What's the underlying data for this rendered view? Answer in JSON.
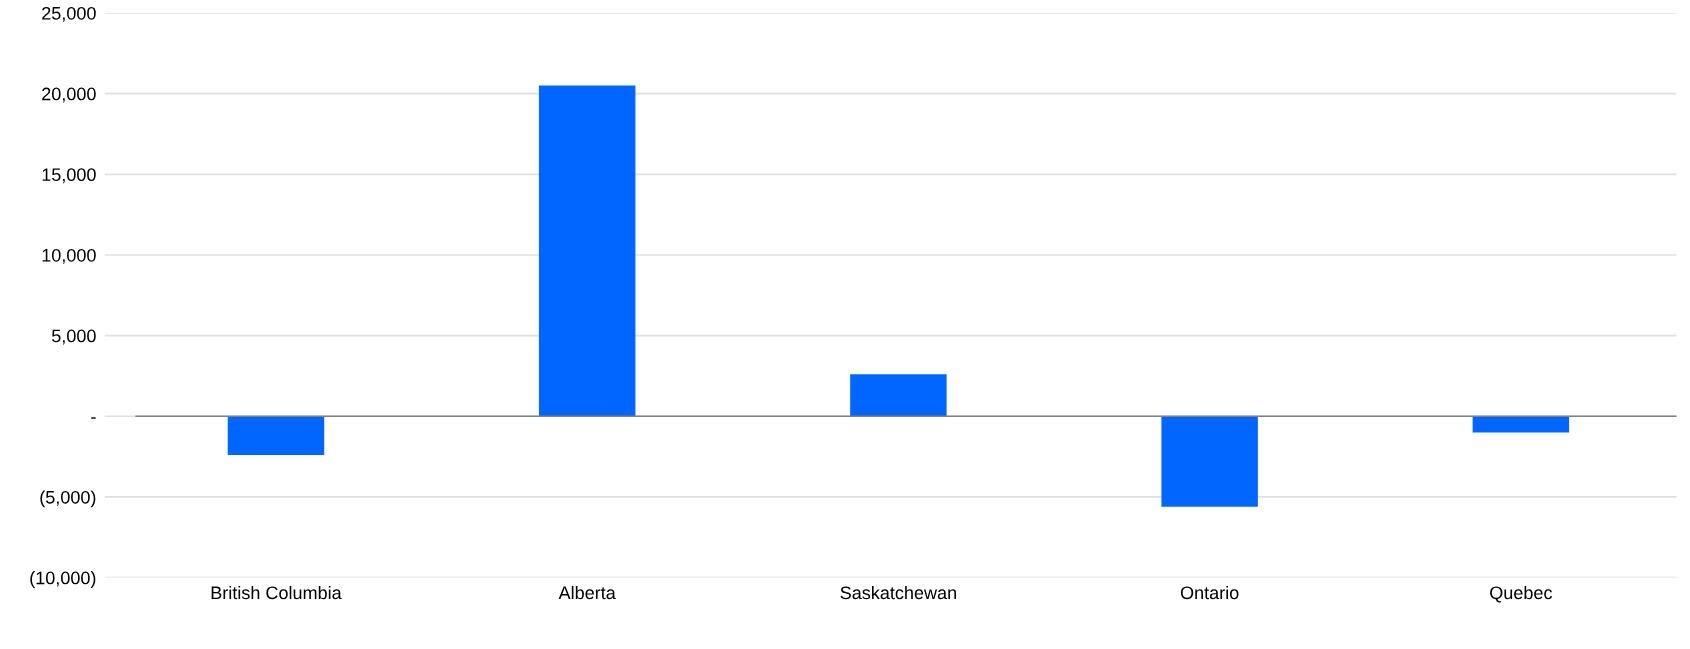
{
  "chart_data": {
    "type": "bar",
    "categories": [
      "British Columbia",
      "Alberta",
      "Saskatchewan",
      "Ontario",
      "Quebec"
    ],
    "series": [
      {
        "color": "#0066ff",
        "values": [
          -2400,
          20500,
          2600,
          -5600,
          -1000
        ]
      }
    ],
    "ylim": [
      -10000,
      25000
    ],
    "yticks": [
      {
        "value": -10000,
        "label": "(10,000)"
      },
      {
        "value": -5000,
        "label": "(5,000)"
      },
      {
        "value": 0,
        "label": "-"
      },
      {
        "value": 5000,
        "label": "5,000"
      },
      {
        "value": 10000,
        "label": "10,000"
      },
      {
        "value": 15000,
        "label": "15,000"
      },
      {
        "value": 20000,
        "label": "20,000"
      },
      {
        "value": 25000,
        "label": "25,000"
      }
    ],
    "grid": "y",
    "ref_lines": [
      {
        "axis": "y",
        "value": 0,
        "color": "#808080"
      }
    ]
  }
}
